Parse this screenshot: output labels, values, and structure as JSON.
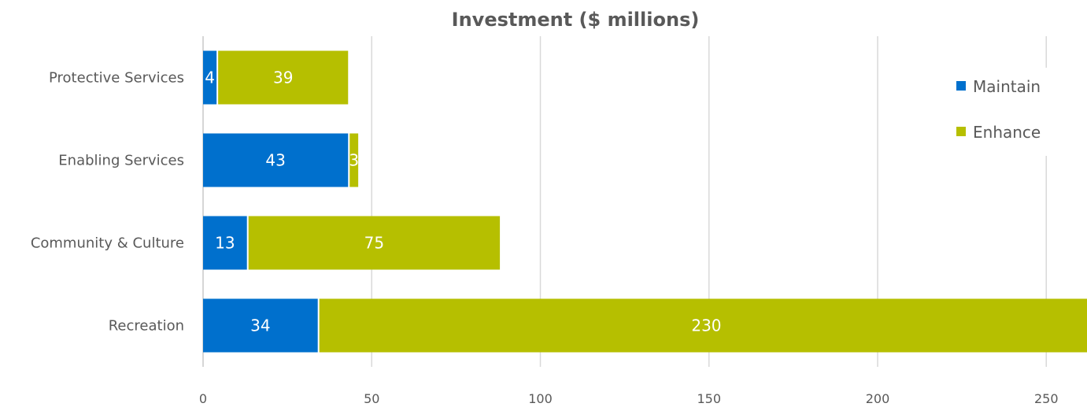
{
  "chart_data": {
    "type": "bar",
    "orientation": "horizontal",
    "stacked": true,
    "title": "Investment ($ millions)",
    "categories": [
      "Protective Services",
      "Enabling Services",
      "Community & Culture",
      "Recreation"
    ],
    "series": [
      {
        "name": "Maintain",
        "color": "#0070CD",
        "values": [
          4,
          43,
          13,
          34
        ]
      },
      {
        "name": "Enhance",
        "color": "#B6BF00",
        "values": [
          39,
          3,
          75,
          230
        ]
      }
    ],
    "xlim": [
      0,
      262
    ],
    "xticks": [
      0,
      50,
      100,
      150,
      200,
      250
    ],
    "grid": true,
    "legend_position": "top-right",
    "data_labels": true
  }
}
